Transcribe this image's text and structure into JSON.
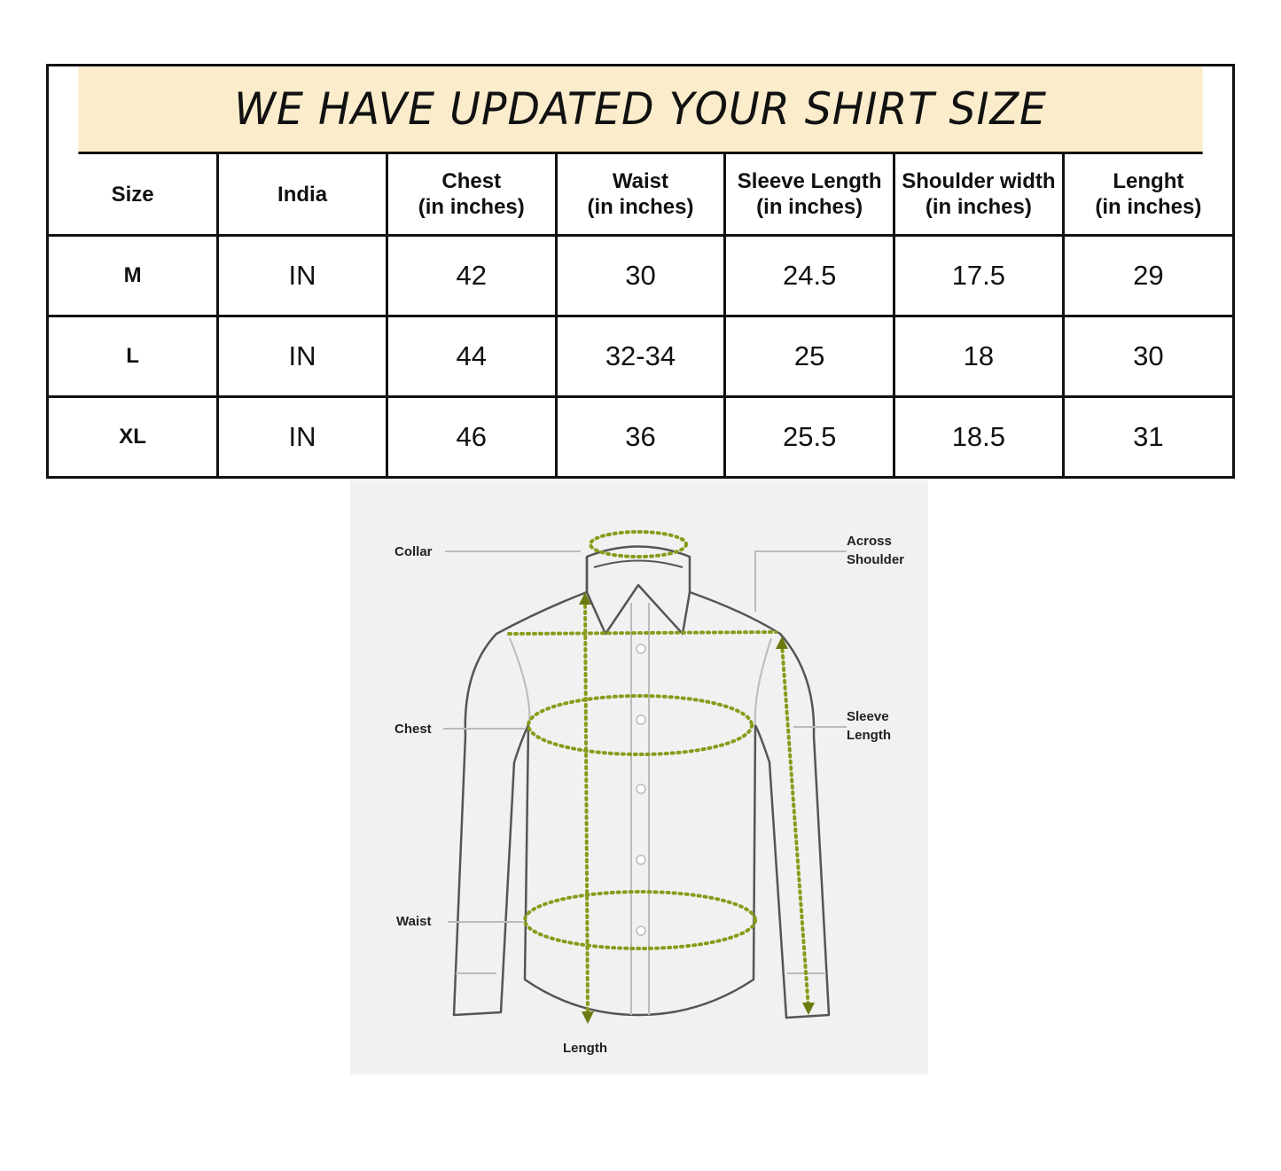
{
  "title": "WE HAVE UPDATED YOUR SHIRT SIZE",
  "table": {
    "headers": [
      {
        "line1": "Size",
        "line2": ""
      },
      {
        "line1": "India",
        "line2": ""
      },
      {
        "line1": "Chest",
        "line2": "(in inches)"
      },
      {
        "line1": "Waist",
        "line2": "(in inches)"
      },
      {
        "line1": "Sleeve Length",
        "line2": "(in inches)"
      },
      {
        "line1": "Shoulder width",
        "line2": "(in inches)"
      },
      {
        "line1": "Lenght",
        "line2": "(in inches)"
      }
    ],
    "rows": [
      [
        "M",
        "IN",
        "42",
        "30",
        "24.5",
        "17.5",
        "29"
      ],
      [
        "L",
        "IN",
        "44",
        "32-34",
        "25",
        "18",
        "30"
      ],
      [
        "XL",
        "IN",
        "46",
        "36",
        "25.5",
        "18.5",
        "31"
      ]
    ]
  },
  "diagram": {
    "labels": {
      "collar": "Collar",
      "across_1": "Across",
      "across_2": "Shoulder",
      "chest": "Chest",
      "sleeve_1": "Sleeve",
      "sleeve_2": "Length",
      "waist": "Waist",
      "length": "Length"
    }
  },
  "colors": {
    "title_bg": "#fbedcc",
    "measure_line": "#8a9a1a",
    "diagram_bg": "#f1f1f1"
  }
}
